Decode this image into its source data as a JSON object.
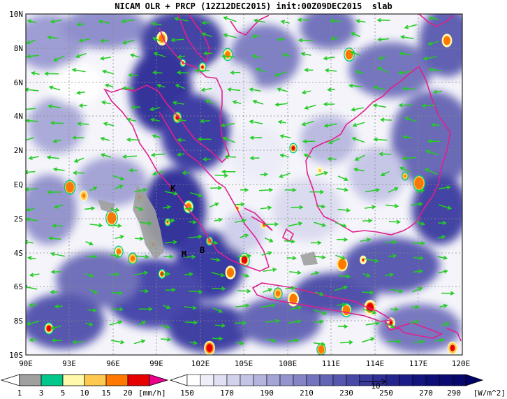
{
  "title": "NICAM OLR + PRCP (12Z12DEC2015) init:00Z09DEC2015  slab",
  "axes": {
    "lat_labels": [
      "10N",
      "8N",
      "6N",
      "4N",
      "2N",
      "EQ",
      "2S",
      "4S",
      "6S",
      "8S",
      "10S"
    ],
    "lon_labels": [
      "90E",
      "93E",
      "96E",
      "99E",
      "102E",
      "105E",
      "108E",
      "111E",
      "114E",
      "117E",
      "120E"
    ]
  },
  "place_labels": [
    {
      "text": "K",
      "name": "place-label-k"
    },
    {
      "text": "M",
      "name": "place-label-m"
    },
    {
      "text": "B",
      "name": "place-label-b"
    }
  ],
  "precip_scale": {
    "ticks": [
      "1",
      "3",
      "5",
      "10",
      "15",
      "20"
    ],
    "unit": "[mm/h]",
    "colors": [
      "#a0a0a0",
      "#00c88c",
      "#fffaaa",
      "#ffc850",
      "#ff7800",
      "#e60000",
      "#e6008c"
    ]
  },
  "olr_scale": {
    "ticks": [
      "150",
      "170",
      "190",
      "210",
      "230",
      "250",
      "270",
      "290"
    ],
    "unit": "[W/m^2]",
    "colors": [
      "#ffffff",
      "#eeeef8",
      "#dcdcf0",
      "#c8c8e6",
      "#b4b4dc",
      "#9696cd",
      "#7878be",
      "#5a5aaf",
      "#3c3ca0",
      "#1e1e8c",
      "#0a0a78"
    ]
  },
  "vector_ref_label": "10",
  "colors": {
    "coast": "#e0208c",
    "wind": "#22cc22",
    "frame": "#000000"
  }
}
